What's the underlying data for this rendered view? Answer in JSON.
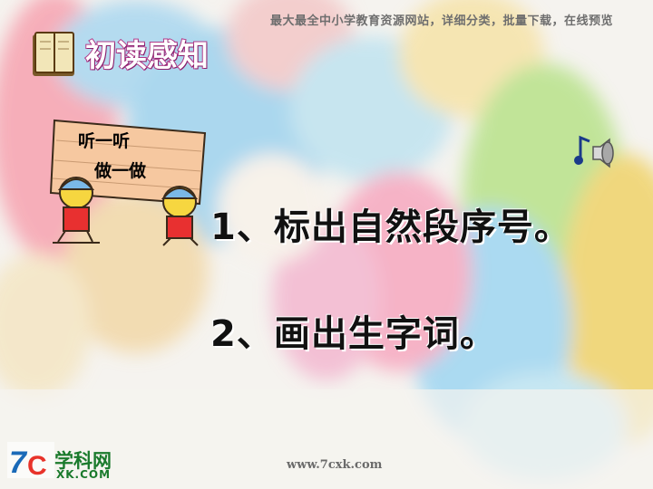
{
  "banner": {
    "text": "最大最全中小学教育资源网站，详细分类，批量下载，在线预览"
  },
  "section": {
    "title": "初读感知",
    "icon": "open-book-icon"
  },
  "sign": {
    "line1": "听一听",
    "line2": "做一做"
  },
  "items": [
    {
      "text": "1、标出自然段序号。"
    },
    {
      "text": "2、画出生字词。"
    }
  ],
  "music": {
    "icon": "music-note-speaker-icon"
  },
  "logo": {
    "main": "学科网",
    "sub": "XK.COM",
    "mark": "7C"
  },
  "site": {
    "text": "www.7cxk.com"
  },
  "colors": {
    "title_fill": "#ffffff",
    "title_outline": "#b23a8a",
    "logo_green": "#1a7a2c",
    "text": "#111111"
  }
}
